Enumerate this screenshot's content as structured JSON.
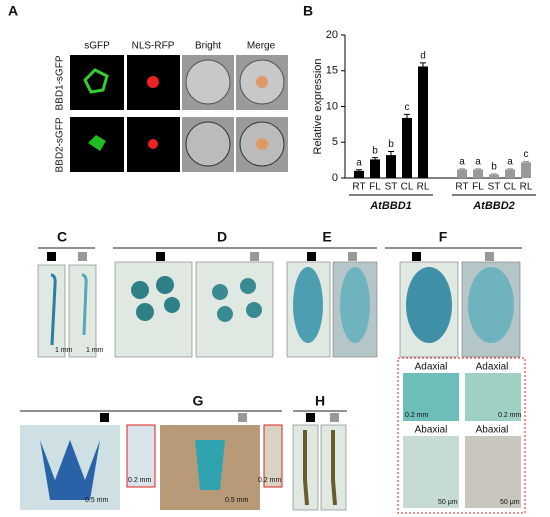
{
  "panel_a": {
    "label": "A",
    "columns": [
      "sGFP",
      "NLS-RFP",
      "Bright",
      "Merge"
    ],
    "rows": [
      "BBD1-sGFP",
      "BBD2-sGFP"
    ]
  },
  "panel_b": {
    "label": "B"
  },
  "chart_data": {
    "type": "bar",
    "ylabel": "Relative expression",
    "categories": [
      "RT",
      "FL",
      "ST",
      "CL",
      "RL"
    ],
    "series": [
      {
        "name": "AtBBD1",
        "color": "#000000",
        "values": [
          1.0,
          2.6,
          3.2,
          8.4,
          15.6
        ],
        "errors": [
          0.15,
          0.25,
          0.5,
          0.5,
          0.5
        ],
        "letters": [
          "a",
          "b",
          "b",
          "c",
          "d"
        ],
        "letter_color": "#000000"
      },
      {
        "name": "AtBBD2",
        "color": "#9a9a9a",
        "values": [
          1.2,
          1.2,
          0.5,
          1.2,
          2.2
        ],
        "errors": [
          0.1,
          0.1,
          0.1,
          0.1,
          0.1
        ],
        "letters": [
          "a",
          "a",
          "b",
          "a",
          "c"
        ],
        "letter_color": "#8a8a8a"
      }
    ],
    "ylim": [
      0,
      20
    ],
    "yticks": [
      0,
      5,
      10,
      15,
      20
    ]
  },
  "panel_c": {
    "label": "C",
    "scale_bars": [
      "1 mm",
      "1 mm"
    ]
  },
  "panel_d": {
    "label": "D"
  },
  "panel_e": {
    "label": "E"
  },
  "panel_f": {
    "label": "F",
    "insets": [
      "Adaxial",
      "Adaxial",
      "Abaxial",
      "Abaxial"
    ],
    "scale_bars": [
      "0.2 mm",
      "0.2 mm",
      "50 μm",
      "50 μm"
    ]
  },
  "panel_g": {
    "label": "G",
    "scale_bars": [
      "0.2 mm",
      "0.5 mm",
      "0.5 mm",
      "0.2 mm"
    ]
  },
  "panel_h": {
    "label": "H"
  }
}
